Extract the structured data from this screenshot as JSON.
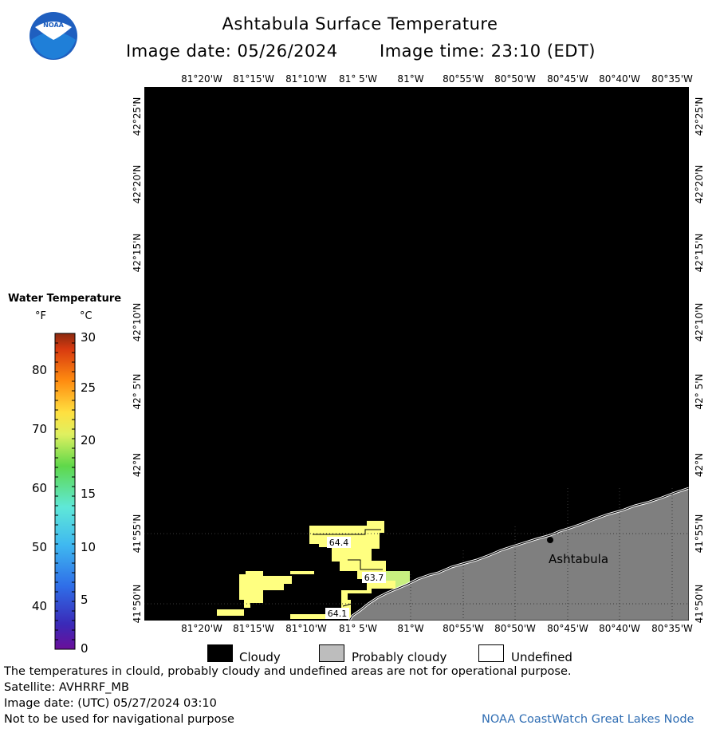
{
  "header": {
    "title": "Ashtabula Surface Temperature",
    "image_date": "Image date: 05/26/2024",
    "image_time": "Image time: 23:10 (EDT)",
    "logo_text": "NOAA"
  },
  "axes": {
    "lon_labels": [
      "81°20'W",
      "81°15'W",
      "81°10'W",
      "81° 5'W",
      "81°W",
      "80°55'W",
      "80°50'W",
      "80°45'W",
      "80°40'W",
      "80°35'W"
    ],
    "lat_labels": [
      "42°25'N",
      "42°20'N",
      "42°15'N",
      "42°10'N",
      "42° 5'N",
      "42°N",
      "41°55'N",
      "41°50'N"
    ]
  },
  "map": {
    "place_label": "Ashtabula",
    "temp_labels": [
      "64.4",
      "63.7",
      "64.1"
    ],
    "colors": {
      "cloudy": "#000000",
      "probably_cloudy": "#7f7f7f",
      "undefined": "#ffffff",
      "warm_water": "#ffff80",
      "cool_water": "#b0f070"
    }
  },
  "legend": {
    "title": "Water Temperature",
    "unit_f": "°F",
    "unit_c": "°C",
    "f_ticks": [
      "80",
      "70",
      "60",
      "50",
      "40"
    ],
    "c_ticks": [
      "30",
      "25",
      "20",
      "15",
      "10",
      "5",
      "0"
    ],
    "c_range": [
      0,
      30
    ],
    "f_range": [
      32,
      86
    ]
  },
  "key": {
    "cloudy": "Cloudy",
    "probably_cloudy": "Probably cloudy",
    "undefined": "Undefined"
  },
  "footer": {
    "disclaimer": "The temperatures in clould, probably cloudy and undefined areas are not for operational purpose.",
    "satellite": "Satellite: AVHRRF_MB",
    "utc_date": "Image date: (UTC) 05/27/2024  03:10",
    "nav_warning": "Not to be used for navigational purpose",
    "credit": "NOAA CoastWatch Great Lakes Node"
  }
}
